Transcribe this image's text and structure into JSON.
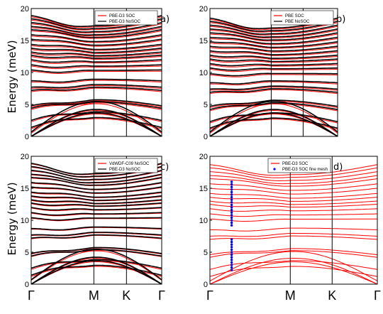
{
  "chart_data": [
    {
      "type": "line",
      "panel_label": "a)",
      "ylabel": "Energy (meV)",
      "ylim": [
        0,
        20
      ],
      "yticks": [
        0,
        5,
        10,
        15,
        20
      ],
      "xtick_labels": [],
      "legend": [
        {
          "name": "PBE-D3 SOC",
          "color": "#ff0000"
        },
        {
          "name": "PBE-D3 NoSOC",
          "color": "#000000"
        }
      ],
      "series": [
        {
          "name": "PBE-D3 SOC",
          "color": "#ff0000",
          "band_count": 24,
          "sample_energies_at_Gamma": [
            0,
            0,
            0.5,
            1.2,
            2.3,
            4.2,
            4.6,
            7.0,
            7.5,
            8.5,
            10.2,
            11.0,
            11.8,
            12.5,
            13.0,
            13.6,
            14.2,
            15.0,
            15.7,
            16.5,
            17.0,
            17.6,
            18.2,
            18.7
          ]
        },
        {
          "name": "PBE-D3 NoSOC",
          "color": "#000000",
          "band_count": 24,
          "sample_energies_at_Gamma": [
            0,
            0,
            0.7,
            1.4,
            2.5,
            4.4,
            4.8,
            7.2,
            7.7,
            8.7,
            10.4,
            11.2,
            12.0,
            12.7,
            13.2,
            13.8,
            14.4,
            15.2,
            15.9,
            16.7,
            17.2,
            17.8,
            18.4,
            18.9
          ]
        }
      ]
    },
    {
      "type": "line",
      "panel_label": "b)",
      "ylabel": "",
      "ylim": [
        0,
        20
      ],
      "yticks": [
        0,
        5,
        10,
        15,
        20
      ],
      "xtick_labels": [],
      "legend": [
        {
          "name": "PBE SOC",
          "color": "#ff0000"
        },
        {
          "name": "PBE NoSOC",
          "color": "#000000"
        }
      ],
      "series": [
        {
          "name": "PBE SOC",
          "color": "#ff0000",
          "band_count": 24,
          "sample_energies_at_Gamma": [
            0,
            0,
            0.5,
            1.1,
            2.1,
            4.0,
            4.5,
            6.7,
            7.2,
            8.2,
            9.6,
            10.5,
            11.2,
            11.9,
            12.5,
            13.2,
            13.9,
            14.6,
            15.3,
            16.0,
            16.6,
            17.2,
            17.8,
            18.3
          ]
        },
        {
          "name": "PBE NoSOC",
          "color": "#000000",
          "band_count": 24,
          "sample_energies_at_Gamma": [
            0,
            0,
            0.7,
            1.3,
            2.3,
            4.2,
            4.7,
            6.9,
            7.4,
            8.4,
            9.8,
            10.7,
            11.4,
            12.1,
            12.7,
            13.4,
            14.1,
            14.8,
            15.5,
            16.2,
            16.8,
            17.4,
            18.0,
            18.5
          ]
        }
      ]
    },
    {
      "type": "line",
      "panel_label": "c)",
      "ylabel": "Energy (meV)",
      "ylim": [
        0,
        20
      ],
      "yticks": [
        0,
        5,
        10,
        15,
        20
      ],
      "xtick_labels": [
        "Γ",
        "M",
        "K",
        "Γ"
      ],
      "legend": [
        {
          "name": "VdWDF-C09 NoSOC",
          "color": "#ff0000"
        },
        {
          "name": "PBE-D3 NoSOC",
          "color": "#000000"
        }
      ],
      "series": [
        {
          "name": "VdWDF-C09 NoSOC",
          "color": "#ff0000",
          "band_count": 24,
          "sample_energies_at_Gamma": [
            0,
            0,
            0.6,
            1.2,
            2.3,
            4.3,
            4.7,
            7.1,
            7.6,
            8.6,
            10.3,
            11.1,
            11.9,
            12.6,
            13.1,
            13.7,
            14.3,
            15.1,
            15.8,
            16.6,
            17.1,
            17.7,
            18.3,
            18.8
          ]
        },
        {
          "name": "PBE-D3 NoSOC",
          "color": "#000000",
          "band_count": 24,
          "sample_energies_at_Gamma": [
            0,
            0,
            0.7,
            1.4,
            2.5,
            4.4,
            4.8,
            7.2,
            7.7,
            8.7,
            10.4,
            11.2,
            12.0,
            12.7,
            13.2,
            13.8,
            14.4,
            15.2,
            15.9,
            16.7,
            17.2,
            17.8,
            18.4,
            18.9
          ]
        }
      ]
    },
    {
      "type": "line",
      "panel_label": "d)",
      "ylabel": "",
      "ylim": [
        0,
        20
      ],
      "yticks": [
        0,
        5,
        10,
        15,
        20
      ],
      "xtick_labels": [
        "Γ",
        "M",
        "K",
        "Γ"
      ],
      "legend": [
        {
          "name": "PBE-D3 SOC",
          "color": "#ff0000",
          "marker": "line"
        },
        {
          "name": "PBE-D3 SOC fine mesh",
          "color": "#0000ff",
          "marker": "dot"
        }
      ],
      "series": [
        {
          "name": "PBE-D3 SOC",
          "color": "#ff0000",
          "band_count": 24,
          "sample_energies_at_Gamma": [
            0,
            0,
            0.5,
            1.2,
            2.3,
            4.2,
            4.6,
            7.0,
            7.5,
            8.5,
            10.2,
            11.0,
            11.8,
            12.5,
            13.0,
            13.6,
            14.2,
            15.0,
            15.7,
            16.5,
            17.0,
            17.6,
            18.2,
            18.7
          ]
        },
        {
          "name": "PBE-D3 SOC fine mesh",
          "color": "#0000ff",
          "x_fraction_of_Gamma_M": 0.27,
          "y": [
            2.2,
            2.6,
            3.0,
            3.4,
            3.8,
            4.2,
            4.6,
            5.0,
            5.4,
            5.8,
            6.2,
            6.6,
            7.0,
            9.2,
            9.6,
            10.0,
            10.4,
            10.8,
            11.2,
            11.6,
            12.0,
            12.4,
            12.8,
            13.2,
            13.6,
            14.0,
            14.4,
            14.8,
            15.2,
            15.6,
            16.0
          ]
        }
      ]
    }
  ]
}
